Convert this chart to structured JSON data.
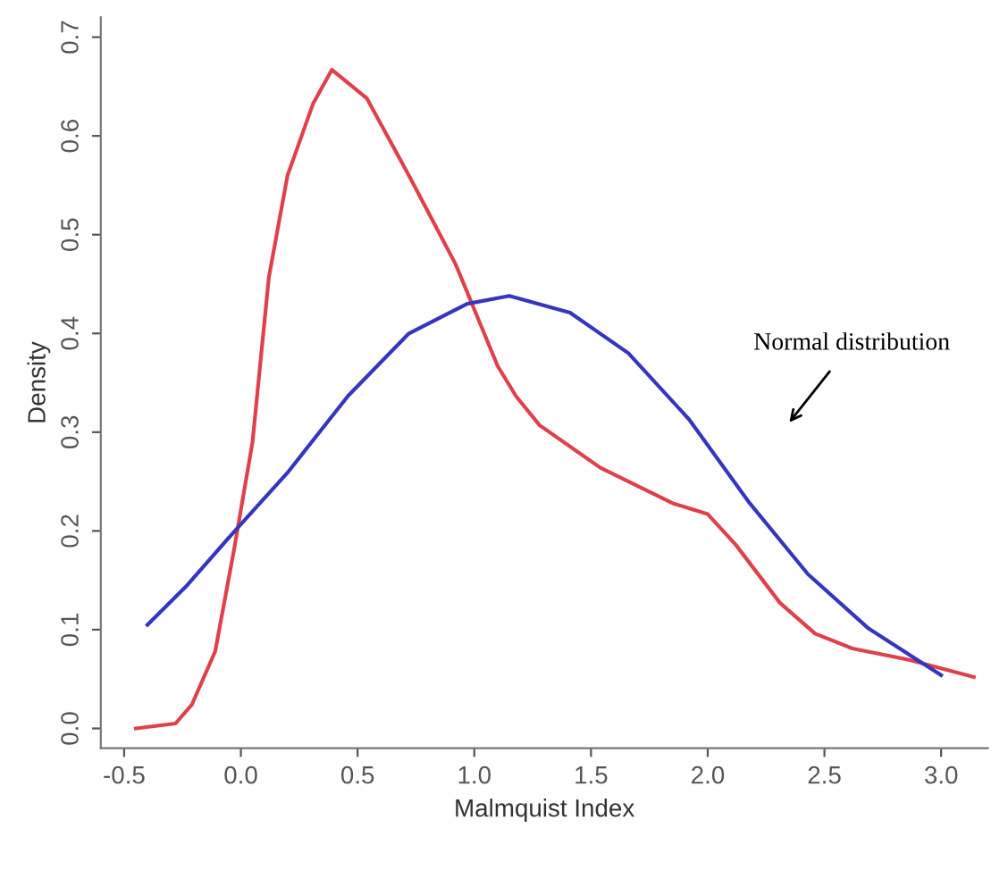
{
  "chart_data": {
    "type": "line",
    "xlabel": "Malmquist Index",
    "ylabel": "Density",
    "xlim": [
      -0.6,
      3.2
    ],
    "ylim": [
      -0.02,
      0.72
    ],
    "xticks": [
      {
        "value": -0.5,
        "label": "-0.5"
      },
      {
        "value": 0,
        "label": "0.0"
      },
      0.5,
      {
        "value": 1,
        "label": "1.0"
      },
      1.5,
      {
        "value": 2,
        "label": "2.0"
      },
      2.5,
      {
        "value": 3,
        "label": "3.0"
      }
    ],
    "yticks": [
      {
        "value": 0,
        "label": "0.0"
      },
      0.1,
      0.2,
      0.3,
      0.4,
      0.5,
      0.6,
      0.7
    ],
    "grid": false,
    "legend": false,
    "series": [
      {
        "color": "#e0404a",
        "x": [
          -0.45,
          -0.28,
          -0.21,
          -0.11,
          -0.03,
          0.05,
          0.12,
          0.2,
          0.31,
          0.39,
          0.54,
          0.72,
          0.92,
          1.1,
          1.18,
          1.28,
          1.54,
          1.85,
          2.0,
          2.12,
          2.31,
          2.46,
          2.62,
          2.87,
          3.14
        ],
        "values": [
          0.0,
          0.005,
          0.024,
          0.078,
          0.18,
          0.29,
          0.457,
          0.56,
          0.633,
          0.667,
          0.638,
          0.56,
          0.47,
          0.367,
          0.336,
          0.307,
          0.264,
          0.228,
          0.217,
          0.186,
          0.127,
          0.096,
          0.081,
          0.069,
          0.052
        ]
      },
      {
        "color": "#3535c0",
        "x": [
          -0.4,
          -0.23,
          -0.03,
          0.2,
          0.46,
          0.72,
          0.97,
          1.15,
          1.41,
          1.66,
          1.92,
          2.18,
          2.43,
          2.69,
          3.0
        ],
        "values": [
          0.105,
          0.145,
          0.199,
          0.259,
          0.337,
          0.4,
          0.43,
          0.438,
          0.421,
          0.38,
          0.313,
          0.228,
          0.156,
          0.101,
          0.054
        ]
      }
    ],
    "annotations": [
      "Normal distribution"
    ]
  }
}
